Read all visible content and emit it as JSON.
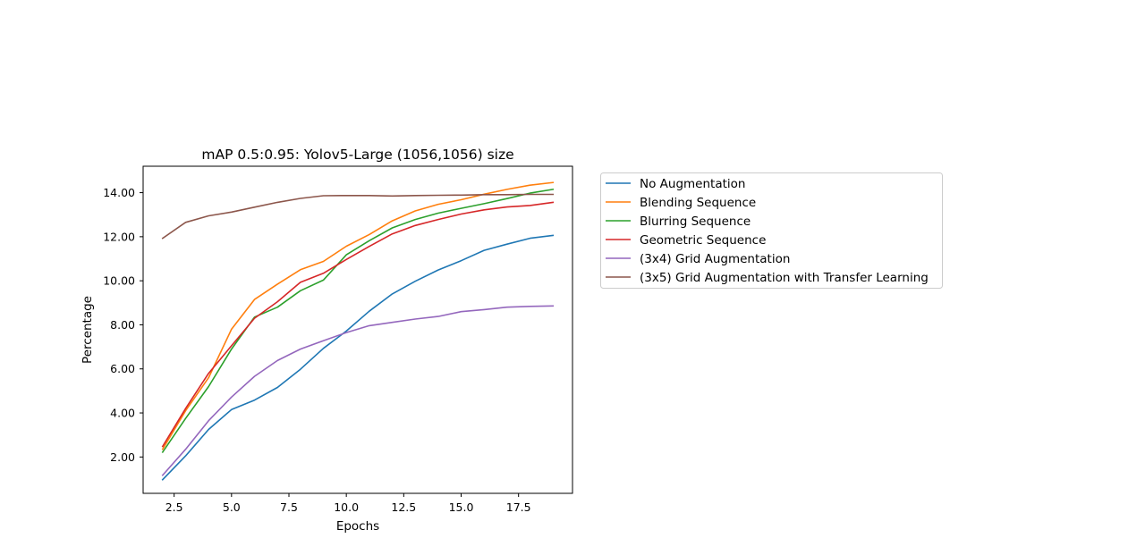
{
  "chart_data": {
    "type": "line",
    "title": "mAP 0.5:0.95: Yolov5-Large (1056,1056) size",
    "xlabel": "Epochs",
    "ylabel": "Percentage",
    "xlim": [
      1.15,
      19.85
    ],
    "ylim": [
      0.35,
      15.2
    ],
    "xticks": [
      2.5,
      5.0,
      7.5,
      10.0,
      12.5,
      15.0,
      17.5
    ],
    "xtick_labels": [
      "2.5",
      "5.0",
      "7.5",
      "10.0",
      "12.5",
      "15.0",
      "17.5"
    ],
    "yticks": [
      2,
      4,
      6,
      8,
      10,
      12,
      14
    ],
    "ytick_labels": [
      "2.00",
      "4.00",
      "6.00",
      "8.00",
      "10.00",
      "12.00",
      "14.00"
    ],
    "grid": false,
    "legend_placement": "outside upper right",
    "x": [
      2,
      3,
      4,
      5,
      6,
      7,
      8,
      9,
      10,
      11,
      12,
      13,
      14,
      15,
      16,
      17,
      18,
      19
    ],
    "series": [
      {
        "name": "No Augmentation",
        "color": "#1f77b4",
        "values": [
          0.97,
          2.05,
          3.25,
          4.15,
          4.58,
          5.16,
          5.98,
          6.93,
          7.72,
          8.62,
          9.4,
          9.98,
          10.49,
          10.91,
          11.38,
          11.66,
          11.93,
          12.06
        ]
      },
      {
        "name": "Blending Sequence",
        "color": "#ff7f0e",
        "values": [
          2.35,
          4.1,
          5.6,
          7.8,
          9.15,
          9.85,
          10.5,
          10.88,
          11.57,
          12.1,
          12.72,
          13.17,
          13.47,
          13.68,
          13.93,
          14.15,
          14.34,
          14.46
        ]
      },
      {
        "name": "Blurring Sequence",
        "color": "#2ca02c",
        "values": [
          2.22,
          3.75,
          5.2,
          6.9,
          8.35,
          8.8,
          9.55,
          10.03,
          11.18,
          11.82,
          12.4,
          12.78,
          13.07,
          13.29,
          13.5,
          13.73,
          13.98,
          14.15
        ]
      },
      {
        "name": "Geometric Sequence",
        "color": "#d62728",
        "values": [
          2.48,
          4.2,
          5.8,
          7.05,
          8.3,
          9.05,
          9.93,
          10.34,
          10.97,
          11.56,
          12.13,
          12.51,
          12.78,
          13.03,
          13.22,
          13.35,
          13.42,
          13.56
        ]
      },
      {
        "name": "(3x4) Grid Augmentation",
        "color": "#9467bd",
        "values": [
          1.17,
          2.35,
          3.65,
          4.72,
          5.66,
          6.38,
          6.9,
          7.28,
          7.65,
          7.96,
          8.11,
          8.26,
          8.38,
          8.6,
          8.69,
          8.8,
          8.84,
          8.86
        ]
      },
      {
        "name": "(3x5) Grid Augmentation with Transfer Learning",
        "color": "#8c564b",
        "values": [
          11.93,
          12.65,
          12.95,
          13.12,
          13.34,
          13.56,
          13.74,
          13.86,
          13.87,
          13.87,
          13.85,
          13.87,
          13.88,
          13.89,
          13.91,
          13.91,
          13.92,
          13.92
        ]
      }
    ]
  }
}
